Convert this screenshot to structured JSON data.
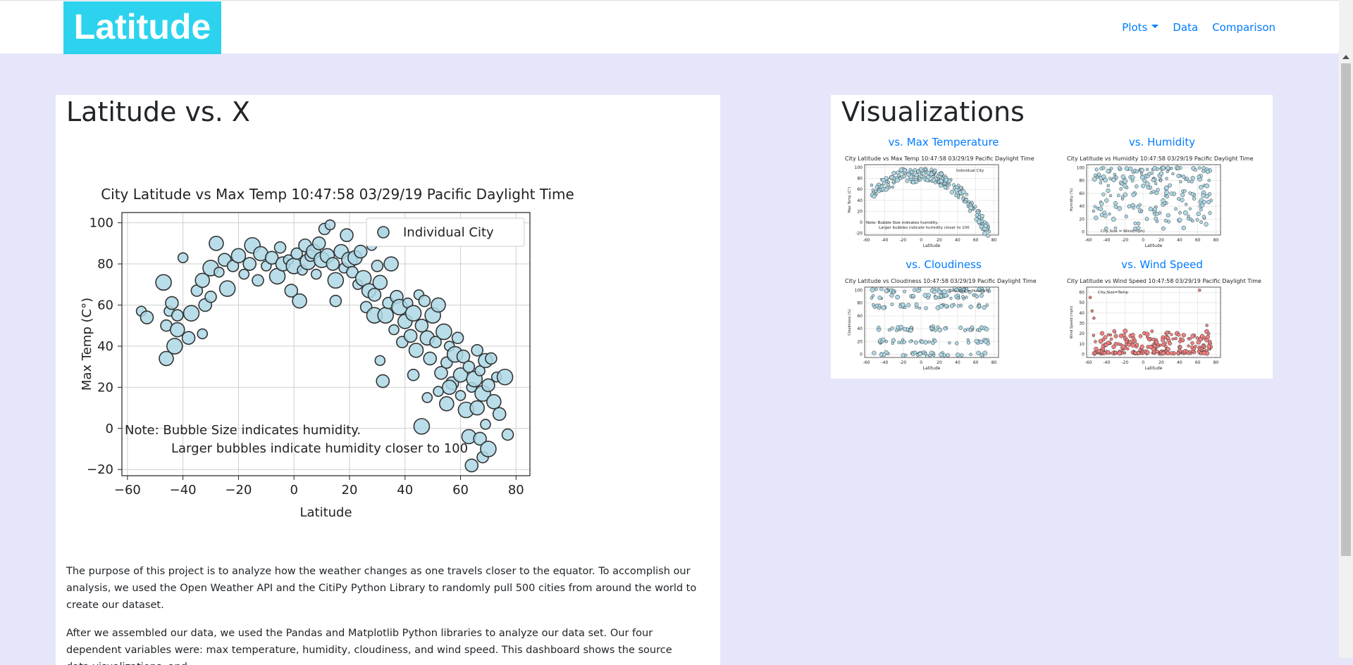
{
  "nav": {
    "brand": "Latitude",
    "links": [
      "Plots",
      "Data",
      "Comparison"
    ]
  },
  "main": {
    "title": "Latitude vs. X",
    "para1": "The purpose of this project is to analyze how the weather changes as one travels closer to the equator. To accomplish our analysis, we used the Open Weather API and the CitiPy Python Library to randomly pull 500 cities from around the world to create our dataset.",
    "para2": "After we assembled our data, we used the Pandas and Matplotlib Python libraries to analyze our data set. Our four dependent variables were: max temperature, humidity, cloudiness, and wind speed. This dashboard shows the source data,visualizations, and"
  },
  "visualizations": {
    "title": "Visualizations",
    "links": [
      "vs. Max Temperature",
      "vs. Humidity",
      "vs. Cloudiness",
      "vs. Wind Speed"
    ]
  },
  "colors": {
    "brand_bg": "#2dd3ee",
    "link": "#007bff",
    "page_bg": "#e6e6fa",
    "marker_blue": "#add8e6",
    "marker_red": "#f08080"
  },
  "chart_data": [
    {
      "type": "scatter",
      "title": "City Latitude vs Max Temp    10:47:58 03/29/19 Pacific Daylight Time",
      "xlabel": "Latitude",
      "ylabel": "Max Temp (C°)",
      "xlim": [
        -62,
        85
      ],
      "ylim": [
        -23,
        105
      ],
      "xticks": [
        -60,
        -40,
        -20,
        0,
        20,
        40,
        60,
        80
      ],
      "yticks": [
        -20,
        0,
        20,
        40,
        60,
        80,
        100
      ],
      "grid": true,
      "legend": "top-right",
      "series": [
        {
          "name": "Individual City"
        }
      ],
      "annotation": [
        "Note: Bubble Size indicates humidity.",
        "Larger bubbles indicate humidity closer to 100"
      ],
      "points": [
        [
          -55,
          57
        ],
        [
          -53,
          54
        ],
        [
          -47,
          71
        ],
        [
          -46,
          50
        ],
        [
          -46,
          34
        ],
        [
          -45,
          57
        ],
        [
          -44,
          61
        ],
        [
          -43,
          40
        ],
        [
          -42,
          55
        ],
        [
          -42,
          48
        ],
        [
          -40,
          83
        ],
        [
          -38,
          44
        ],
        [
          -37,
          56
        ],
        [
          -35,
          67
        ],
        [
          -33,
          72
        ],
        [
          -33,
          46
        ],
        [
          -32,
          60
        ],
        [
          -30,
          78
        ],
        [
          -30,
          64
        ],
        [
          -28,
          90
        ],
        [
          -27,
          76
        ],
        [
          -25,
          82
        ],
        [
          -24,
          68
        ],
        [
          -22,
          79
        ],
        [
          -20,
          84
        ],
        [
          -18,
          75
        ],
        [
          -16,
          80
        ],
        [
          -15,
          89
        ],
        [
          -13,
          72
        ],
        [
          -12,
          85
        ],
        [
          -10,
          79
        ],
        [
          -8,
          83
        ],
        [
          -6,
          74
        ],
        [
          -5,
          88
        ],
        [
          -4,
          80
        ],
        [
          -2,
          82
        ],
        [
          -1,
          67
        ],
        [
          0,
          79
        ],
        [
          1,
          85
        ],
        [
          2,
          62
        ],
        [
          3,
          77
        ],
        [
          4,
          89
        ],
        [
          5,
          81
        ],
        [
          6,
          84
        ],
        [
          7,
          86
        ],
        [
          8,
          75
        ],
        [
          9,
          90
        ],
        [
          10,
          82
        ],
        [
          11,
          97
        ],
        [
          12,
          84
        ],
        [
          13,
          99
        ],
        [
          14,
          80
        ],
        [
          15,
          72
        ],
        [
          15,
          62
        ],
        [
          17,
          86
        ],
        [
          18,
          78
        ],
        [
          19,
          94
        ],
        [
          20,
          82
        ],
        [
          21,
          76
        ],
        [
          22,
          83
        ],
        [
          23,
          70
        ],
        [
          24,
          86
        ],
        [
          25,
          73
        ],
        [
          26,
          59
        ],
        [
          27,
          67
        ],
        [
          28,
          89
        ],
        [
          29,
          65
        ],
        [
          29,
          55
        ],
        [
          30,
          79
        ],
        [
          31,
          71
        ],
        [
          31,
          33
        ],
        [
          32,
          23
        ],
        [
          33,
          55
        ],
        [
          34,
          61
        ],
        [
          35,
          80
        ],
        [
          36,
          48
        ],
        [
          37,
          64
        ],
        [
          38,
          59
        ],
        [
          39,
          42
        ],
        [
          40,
          52
        ],
        [
          41,
          61
        ],
        [
          42,
          45
        ],
        [
          43,
          56
        ],
        [
          43,
          26
        ],
        [
          44,
          38
        ],
        [
          45,
          65
        ],
        [
          46,
          50
        ],
        [
          46,
          1
        ],
        [
          47,
          62
        ],
        [
          48,
          44
        ],
        [
          48,
          15
        ],
        [
          49,
          34
        ],
        [
          50,
          55
        ],
        [
          51,
          42
        ],
        [
          52,
          60
        ],
        [
          52,
          18
        ],
        [
          53,
          27
        ],
        [
          54,
          47
        ],
        [
          55,
          32
        ],
        [
          55,
          12
        ],
        [
          56,
          40
        ],
        [
          57,
          22
        ],
        [
          58,
          36
        ],
        [
          59,
          44
        ],
        [
          60,
          26
        ],
        [
          60,
          16
        ],
        [
          61,
          35
        ],
        [
          62,
          9
        ],
        [
          63,
          30
        ],
        [
          63,
          -4
        ],
        [
          64,
          20
        ],
        [
          64,
          -18
        ],
        [
          65,
          24
        ],
        [
          66,
          38
        ],
        [
          66,
          10
        ],
        [
          67,
          28
        ],
        [
          67,
          -5
        ],
        [
          68,
          17
        ],
        [
          68,
          -14
        ],
        [
          69,
          33
        ],
        [
          69,
          2
        ],
        [
          70,
          21
        ],
        [
          70,
          -10
        ],
        [
          71,
          34
        ],
        [
          72,
          13
        ],
        [
          73,
          25
        ],
        [
          74,
          7
        ],
        [
          76,
          25
        ],
        [
          77,
          -3
        ],
        [
          56,
          20
        ]
      ]
    },
    {
      "type": "scatter",
      "title": "City Latitude vs Max Temp    10:47:58 03/29/19 Pacific Daylight Time",
      "xlabel": "Latitude",
      "ylabel": "Max Temp (C°)",
      "series": [
        {
          "name": "Individual City"
        }
      ],
      "annotation": [
        "Note: Bubble Size indicates humidity.",
        "Larger bubbles indicate humidity closer to 100"
      ]
    },
    {
      "type": "scatter",
      "title": "City Latitude vs Humidity    10:47:58 03/29/19 Pacific Daylight Time",
      "xlabel": "Latitude",
      "ylabel": "Humidity (%)",
      "series": [
        {
          "name": "City,Size = Wind(mph)"
        }
      ]
    },
    {
      "type": "scatter",
      "title": "City Latitude vs Cloudiness    10:47:58 03/29/19 Pacific Daylight Time",
      "xlabel": "Latitude",
      "ylabel": "Cloudiness (%)",
      "series": [
        {
          "name": "City,Size = Humidity"
        }
      ]
    },
    {
      "type": "scatter",
      "title": "City Latitude vs Wind Speed    10:47:58 03/29/19 Pacific Daylight Time",
      "xlabel": "Latitude",
      "ylabel": "Wind Speed (mph)",
      "series": [
        {
          "name": "City,Size=Temp"
        }
      ]
    }
  ]
}
